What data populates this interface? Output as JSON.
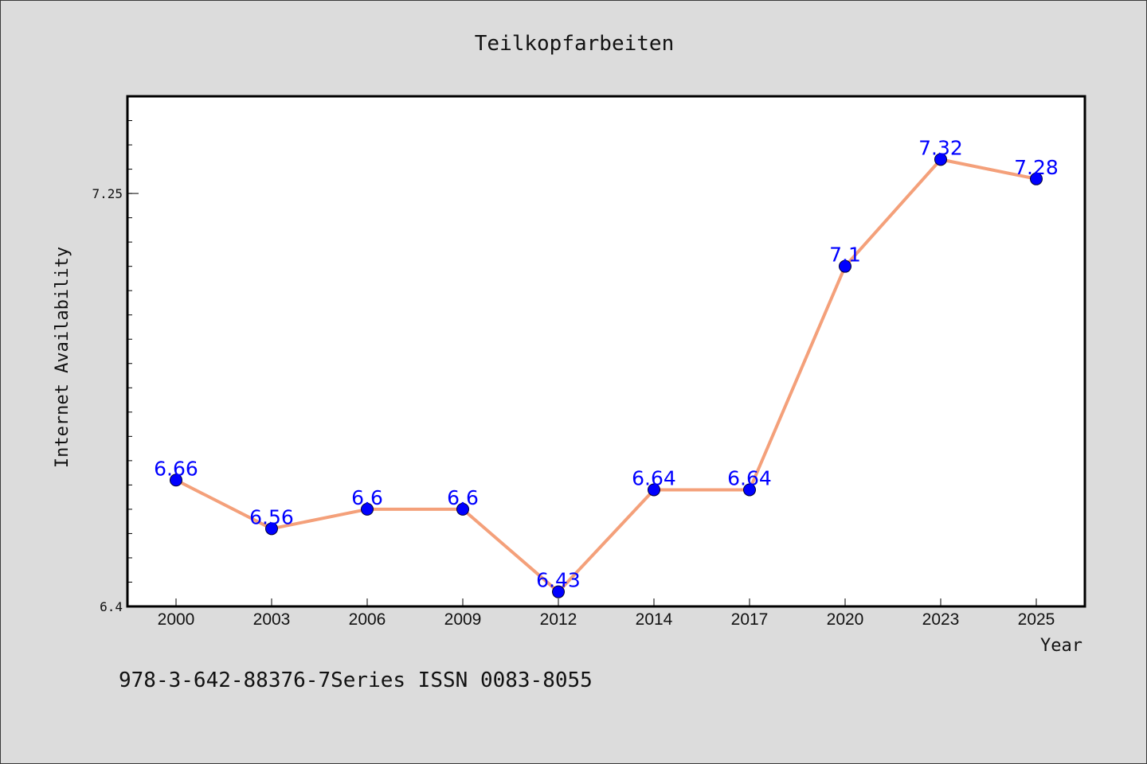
{
  "chart_data": {
    "type": "line",
    "title": "Teilkopfarbeiten",
    "xlabel": "Year",
    "ylabel": "Internet Availability",
    "categories": [
      "2000",
      "2003",
      "2006",
      "2009",
      "2012",
      "2014",
      "2017",
      "2020",
      "2023",
      "2025"
    ],
    "series": [
      {
        "values": [
          6.66,
          6.56,
          6.6,
          6.6,
          6.43,
          6.64,
          6.64,
          7.1,
          7.32,
          7.28
        ]
      }
    ],
    "data_labels": [
      "6.66",
      "6.56",
      "6.6",
      "6.6",
      "6.43",
      "6.64",
      "6.64",
      "7.1",
      "7.32",
      "7.28"
    ],
    "y_ticks": [
      "6.4",
      "7.25"
    ],
    "ylim": [
      6.4,
      7.45
    ],
    "grid": false,
    "line_color": "#f4a07a",
    "marker_color": "#0000ff",
    "label_color": "#0000ff"
  },
  "footer": {
    "text": "978-3-642-88376-7Series ISSN 0083-8055"
  }
}
